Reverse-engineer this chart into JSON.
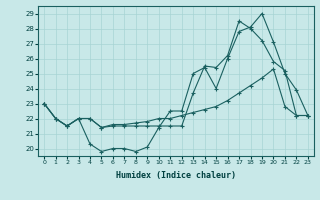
{
  "xlabel": "Humidex (Indice chaleur)",
  "bg_color": "#c8e8e8",
  "line_color": "#1a6060",
  "grid_color": "#a8d4d4",
  "xlim": [
    -0.5,
    23.5
  ],
  "ylim": [
    19.5,
    29.5
  ],
  "xticks": [
    0,
    1,
    2,
    3,
    4,
    5,
    6,
    7,
    8,
    9,
    10,
    11,
    12,
    13,
    14,
    15,
    16,
    17,
    18,
    19,
    20,
    21,
    22,
    23
  ],
  "yticks": [
    20,
    21,
    22,
    23,
    24,
    25,
    26,
    27,
    28,
    29
  ],
  "line1_x": [
    0,
    1,
    2,
    3,
    4,
    5,
    6,
    7,
    8,
    9,
    10,
    11,
    12,
    13,
    14,
    15,
    16,
    17,
    18,
    19,
    20,
    21,
    22,
    23
  ],
  "line1_y": [
    23,
    22,
    21.5,
    22.0,
    20.3,
    19.8,
    20.0,
    20.0,
    19.8,
    20.1,
    21.4,
    22.5,
    22.5,
    25.0,
    25.4,
    24.0,
    26.0,
    27.8,
    28.1,
    29.0,
    27.1,
    25.0,
    23.9,
    22.2
  ],
  "line2_x": [
    0,
    1,
    2,
    3,
    4,
    5,
    6,
    7,
    8,
    9,
    10,
    11,
    12,
    13,
    14,
    15,
    16,
    17,
    18,
    19,
    20,
    21,
    22,
    23
  ],
  "line2_y": [
    23,
    22,
    21.5,
    22.0,
    22.0,
    21.4,
    21.5,
    21.5,
    21.5,
    21.5,
    21.5,
    21.5,
    21.5,
    23.7,
    25.5,
    25.4,
    26.2,
    28.5,
    28.0,
    27.2,
    25.8,
    25.2,
    22.2,
    22.2
  ],
  "line3_x": [
    0,
    1,
    2,
    3,
    4,
    5,
    6,
    7,
    8,
    9,
    10,
    11,
    12,
    13,
    14,
    15,
    16,
    17,
    18,
    19,
    20,
    21,
    22,
    23
  ],
  "line3_y": [
    23,
    22,
    21.5,
    22.0,
    22.0,
    21.4,
    21.6,
    21.6,
    21.7,
    21.8,
    22.0,
    22.0,
    22.2,
    22.4,
    22.6,
    22.8,
    23.2,
    23.7,
    24.2,
    24.7,
    25.3,
    22.8,
    22.2,
    22.2
  ]
}
